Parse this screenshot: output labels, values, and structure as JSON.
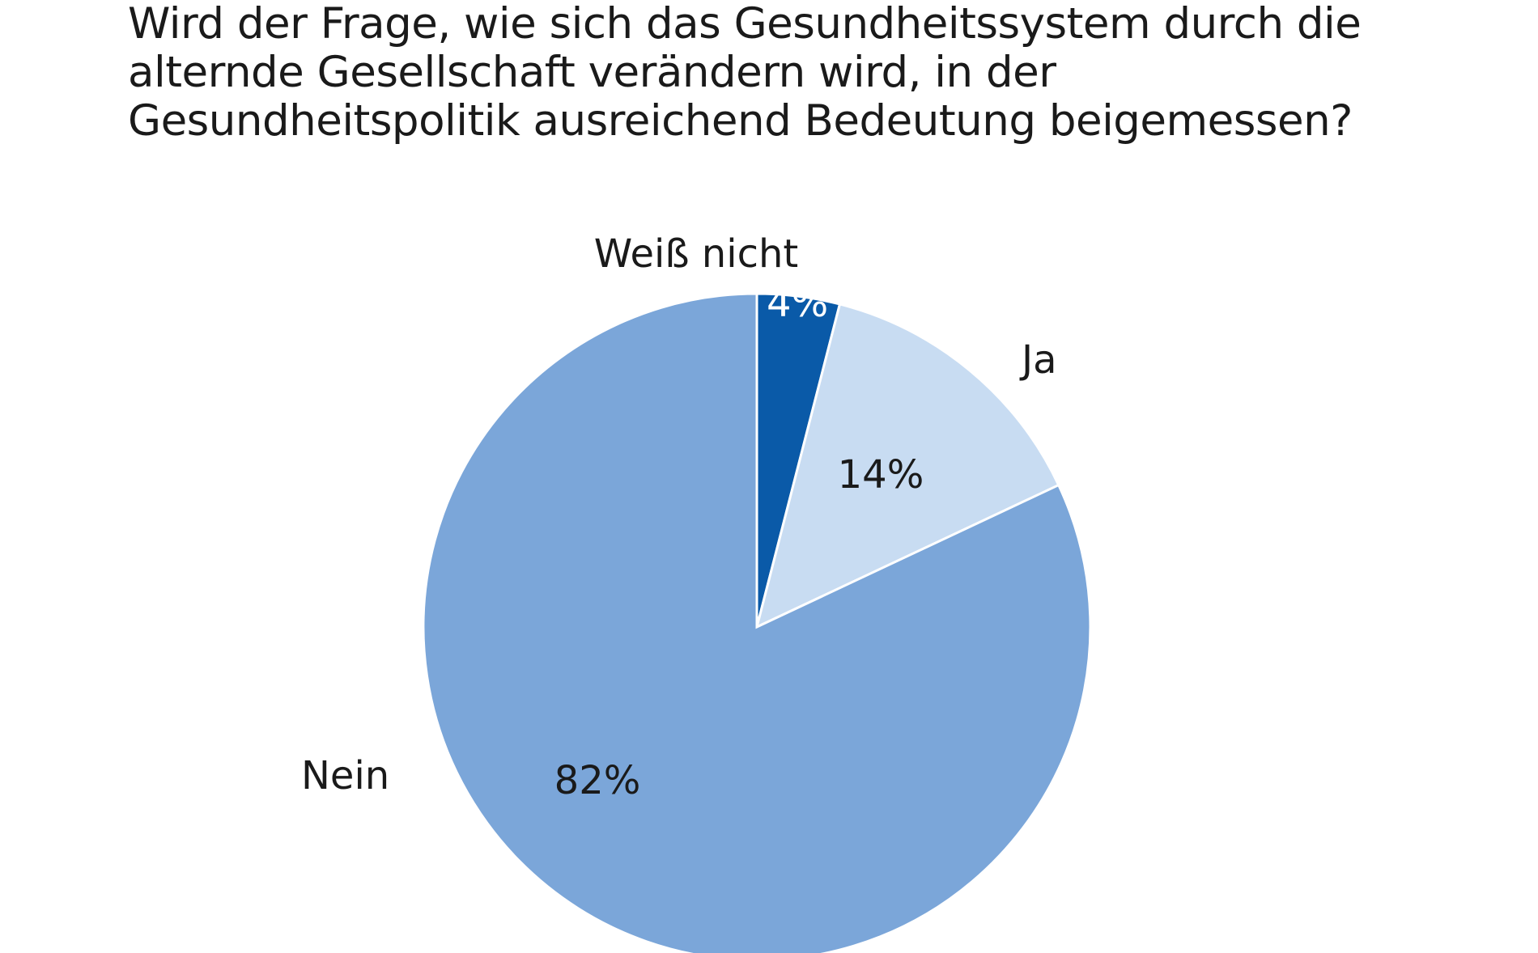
{
  "chart_data": {
    "type": "pie",
    "title": "Wird der Frage, wie sich das Gesundheitssystem durch die alternde Gesellschaft verändern wird, in der Gesundheitspolitik ausreichend Bedeutung beigemessen?",
    "slices": [
      {
        "label": "Weiß nicht",
        "value": 4,
        "value_label": "4%",
        "color": "#0a5aa8"
      },
      {
        "label": "Ja",
        "value": 14,
        "value_label": "14%",
        "color": "#c8dcf2"
      },
      {
        "label": "Nein",
        "value": 82,
        "value_label": "82%",
        "color": "#7ba6d9"
      }
    ],
    "start": "12 o'clock",
    "direction": "clockwise",
    "legend": "none (labels next to slices)"
  }
}
